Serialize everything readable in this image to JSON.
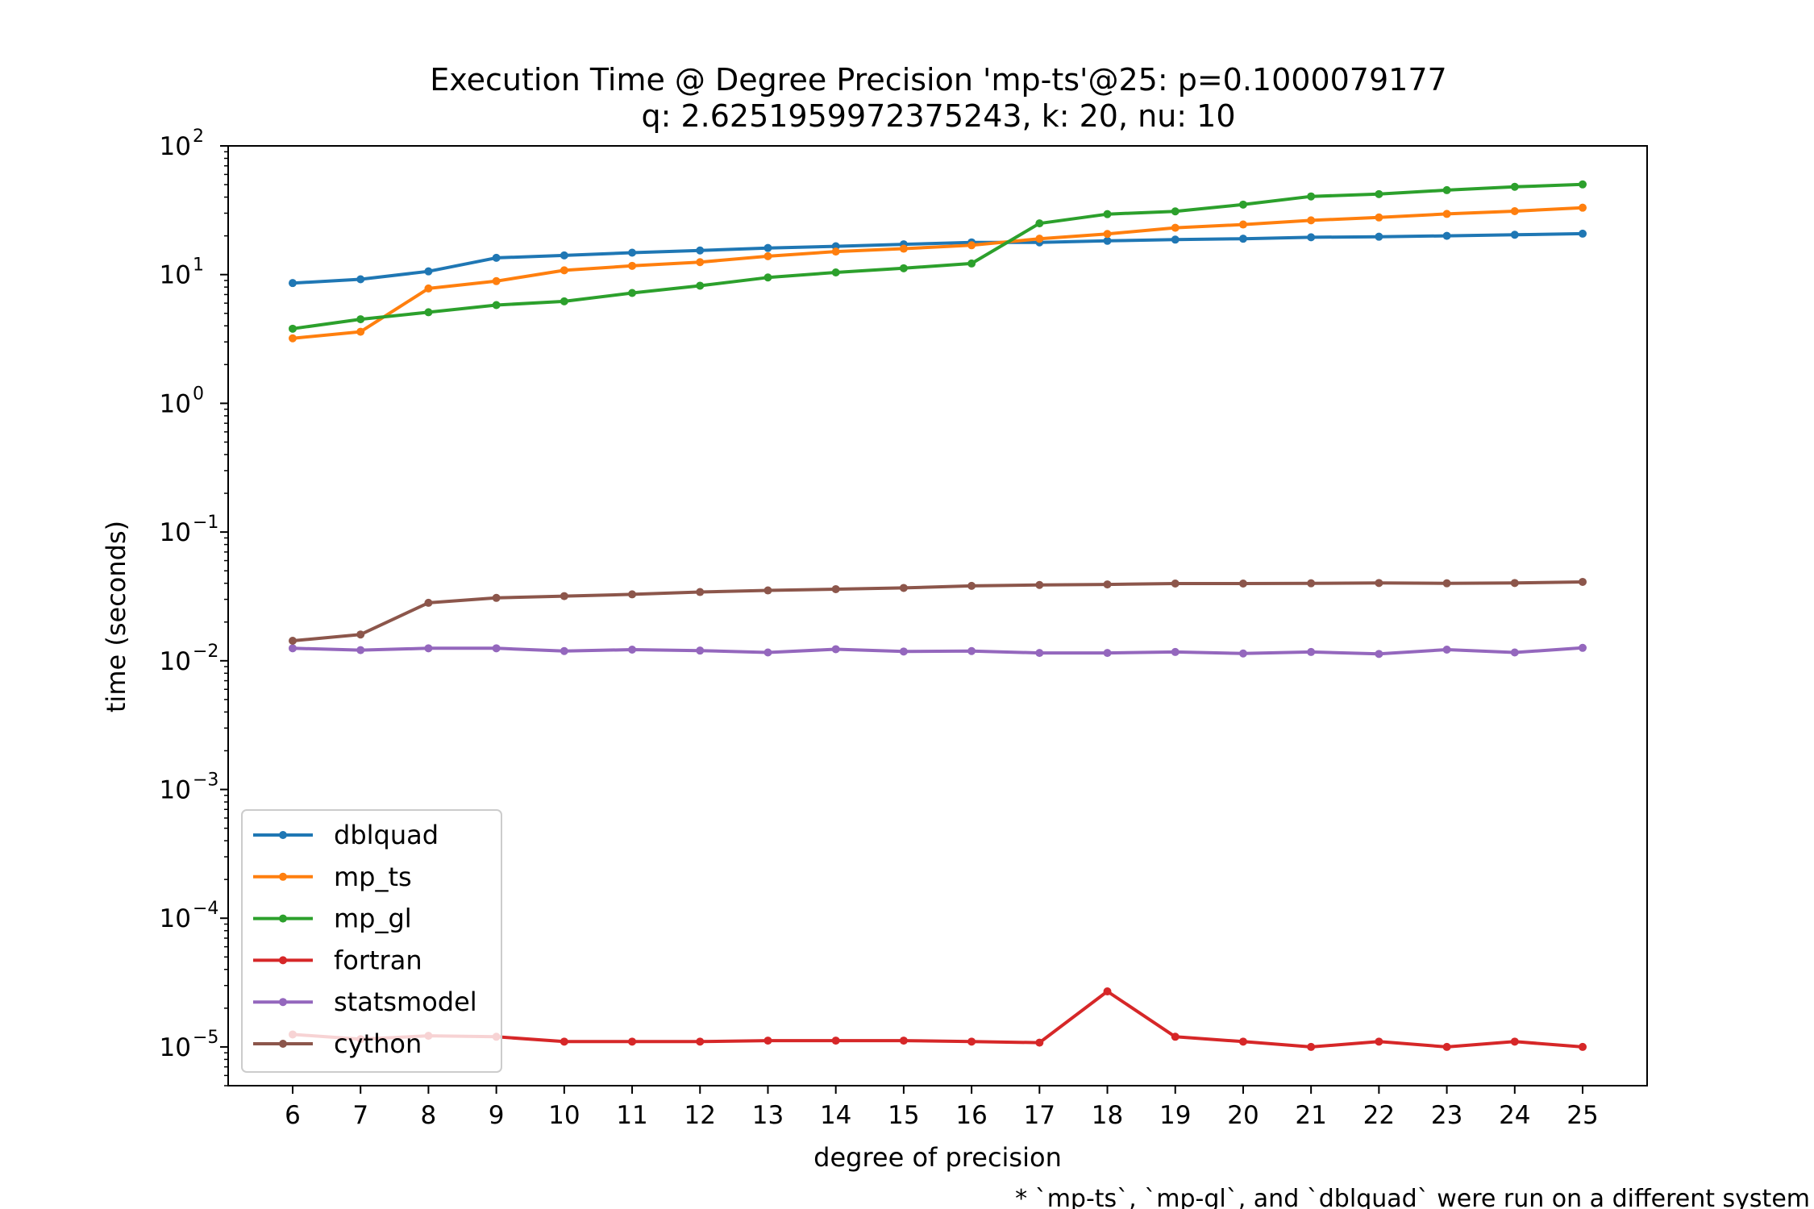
{
  "chart_data": {
    "type": "line",
    "title": "Execution Time @ Degree Precision 'mp-ts'@25: p=0.1000079177",
    "subtitle": "q: 2.6251959972375243, k: 20, nu: 10",
    "xlabel": "degree of precision",
    "ylabel": "time (seconds)",
    "yscale": "log",
    "ylim": [
      5e-06,
      100
    ],
    "xlim": [
      5.05,
      25.95
    ],
    "x": [
      6,
      7,
      8,
      9,
      10,
      11,
      12,
      13,
      14,
      15,
      16,
      17,
      18,
      19,
      20,
      21,
      22,
      23,
      24,
      25
    ],
    "xtick_labels": [
      "6",
      "7",
      "8",
      "9",
      "10",
      "11",
      "12",
      "13",
      "14",
      "15",
      "16",
      "17",
      "18",
      "19",
      "20",
      "21",
      "22",
      "23",
      "24",
      "25"
    ],
    "ytick_exponents": [
      "2",
      "1",
      "0",
      "−1",
      "−2",
      "−3",
      "−4",
      "−5"
    ],
    "grid": false,
    "legend_position": "lower-left",
    "series": [
      {
        "name": "dblquad",
        "color": "#1f77b4",
        "values": [
          8.6,
          9.2,
          10.6,
          13.5,
          14.1,
          14.8,
          15.4,
          16.1,
          16.6,
          17.2,
          17.8,
          17.8,
          18.3,
          18.7,
          19.0,
          19.5,
          19.7,
          20.0,
          20.4,
          20.8
        ]
      },
      {
        "name": "mp_ts",
        "color": "#ff7f0e",
        "values": [
          3.2,
          3.6,
          7.8,
          8.9,
          10.8,
          11.7,
          12.5,
          13.9,
          15.1,
          15.9,
          16.9,
          19.0,
          20.7,
          23.1,
          24.5,
          26.4,
          27.8,
          29.6,
          31.1,
          33.1
        ]
      },
      {
        "name": "mp_gl",
        "color": "#2ca02c",
        "values": [
          3.8,
          4.5,
          5.1,
          5.8,
          6.2,
          7.2,
          8.2,
          9.5,
          10.4,
          11.2,
          12.2,
          25.0,
          29.5,
          31.0,
          35.0,
          40.5,
          42.2,
          45.3,
          48.1,
          50.2
        ]
      },
      {
        "name": "fortran",
        "color": "#d62728",
        "values": [
          1.25e-05,
          1.15e-05,
          1.22e-05,
          1.2e-05,
          1.1e-05,
          1.1e-05,
          1.1e-05,
          1.12e-05,
          1.12e-05,
          1.12e-05,
          1.1e-05,
          1.08e-05,
          2.7e-05,
          1.2e-05,
          1.1e-05,
          1e-05,
          1.1e-05,
          1e-05,
          1.1e-05,
          1e-05
        ]
      },
      {
        "name": "statsmodel",
        "color": "#9467bd",
        "values": [
          0.0125,
          0.0121,
          0.0125,
          0.0125,
          0.0119,
          0.0122,
          0.012,
          0.0116,
          0.0123,
          0.0118,
          0.0119,
          0.0115,
          0.0115,
          0.0117,
          0.0114,
          0.0117,
          0.0113,
          0.0122,
          0.0116,
          0.0126
        ]
      },
      {
        "name": "cython",
        "color": "#8c564b",
        "values": [
          0.0143,
          0.016,
          0.0282,
          0.0308,
          0.0318,
          0.0328,
          0.0342,
          0.0352,
          0.036,
          0.0368,
          0.0382,
          0.0388,
          0.0392,
          0.0398,
          0.0398,
          0.04,
          0.0402,
          0.04,
          0.0402,
          0.041
        ]
      }
    ],
    "annotations": [
      "* `mp-ts`, `mp-gl`, and `dblquad` were run on a different system"
    ]
  }
}
